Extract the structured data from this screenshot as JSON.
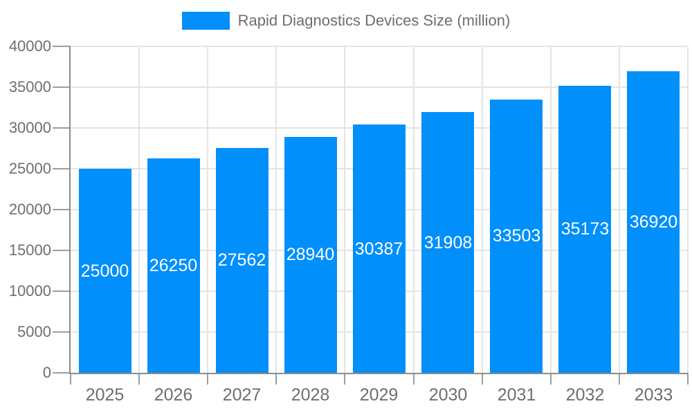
{
  "legend": {
    "position": "top-center",
    "items": [
      {
        "label": "Rapid Diagnostics Devices Size (million)",
        "swatch": "rect",
        "color": "#008FFB"
      }
    ]
  },
  "chart_data": {
    "type": "bar",
    "title": "",
    "categories": [
      "2025",
      "2026",
      "2027",
      "2028",
      "2029",
      "2030",
      "2031",
      "2032",
      "2033"
    ],
    "series": [
      {
        "name": "Rapid Diagnostics Devices Size (million)",
        "color": "#008FFB",
        "values": [
          25000,
          26250,
          27562,
          28940,
          30387,
          31908,
          33503,
          35173,
          36920
        ]
      }
    ],
    "value_labels": {
      "visible": true,
      "position": "inside-center",
      "color": "#ffffff"
    },
    "xlabel": "",
    "ylabel": "",
    "ylim": [
      0,
      40000
    ],
    "y_ticks": [
      0,
      5000,
      10000,
      15000,
      20000,
      25000,
      30000,
      35000,
      40000
    ],
    "grid": true,
    "legend_position": "top"
  },
  "colors": {
    "bar": "#008FFB",
    "grid": "#e4e4e4",
    "axis": "#8c8c8c",
    "tick": "#9e9e9e",
    "tick_label": "#6e6e6e",
    "value_label": "#ffffff",
    "background": "#ffffff"
  }
}
